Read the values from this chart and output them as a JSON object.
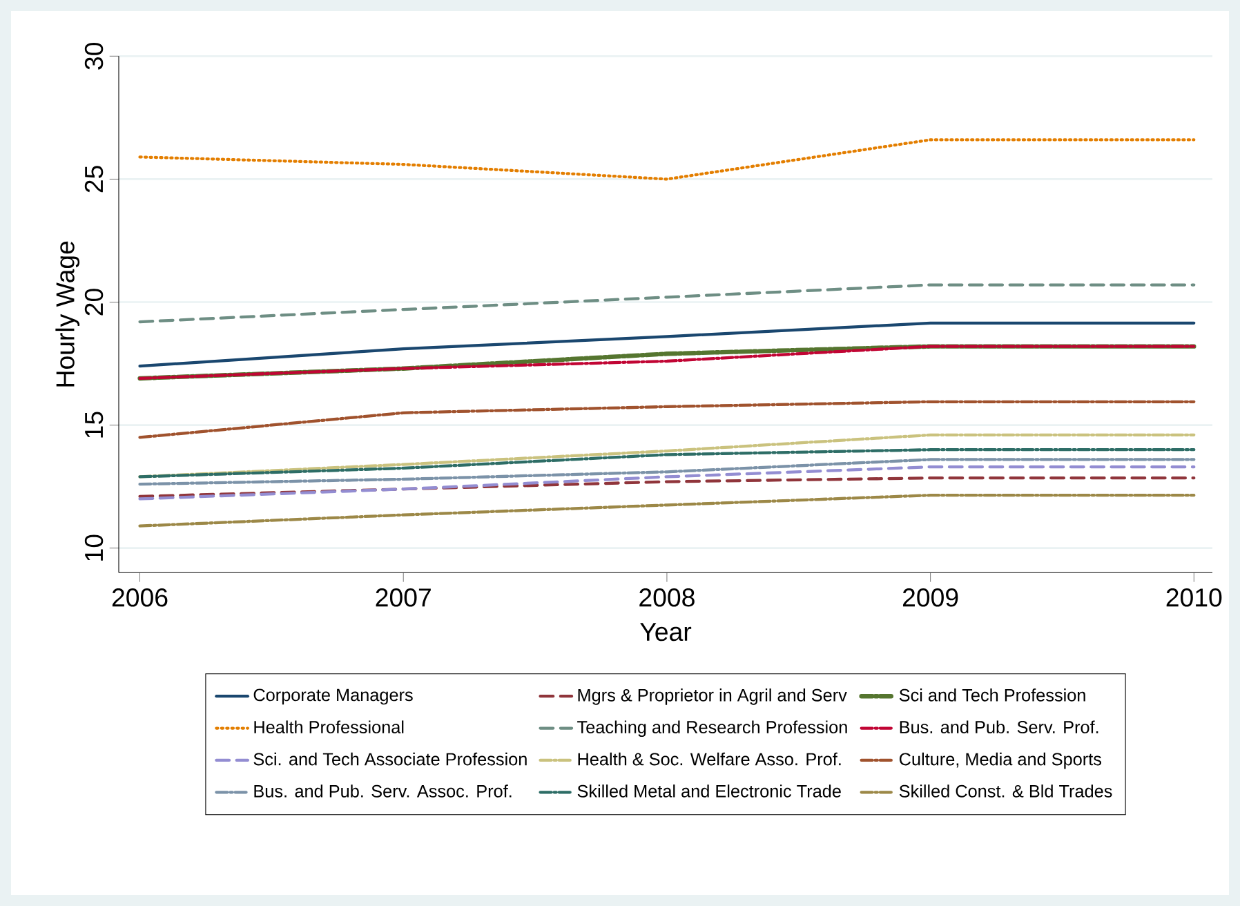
{
  "chart_data": {
    "type": "line",
    "xlabel": "Year",
    "ylabel": "Hourly Wage",
    "x": [
      2006,
      2007,
      2008,
      2009,
      2010
    ],
    "xlim": [
      2005.92,
      2010.07
    ],
    "xticks": [
      2006,
      2007,
      2008,
      2009,
      2010
    ],
    "ylim": [
      9,
      30
    ],
    "yticks": [
      10,
      15,
      20,
      25,
      30
    ],
    "grid": "y",
    "legend": "bottom",
    "marker": "none",
    "series": [
      {
        "name": "Corporate Managers",
        "color": "#1a476f",
        "line_style": "solid",
        "values": [
          17.4,
          18.1,
          18.6,
          19.15,
          19.15
        ]
      },
      {
        "name": "Mgrs & Proprietor in Agril and Serv",
        "color": "#90353b",
        "line_style": "dashed",
        "values": [
          12.1,
          12.4,
          12.7,
          12.85,
          12.85
        ]
      },
      {
        "name": "Sci and Tech Profession",
        "color": "#55752f",
        "line_style": "dashdot",
        "values": [
          16.9,
          17.3,
          17.9,
          18.2,
          18.2
        ]
      },
      {
        "name": "Health Professional",
        "color": "#e37e00",
        "line_style": "dotted",
        "values": [
          25.9,
          25.6,
          25.0,
          26.6,
          26.6
        ]
      },
      {
        "name": "Teaching and Research Profession",
        "color": "#6e8e84",
        "line_style": "dashed",
        "values": [
          19.2,
          19.7,
          20.2,
          20.7,
          20.7
        ]
      },
      {
        "name": "Bus. and Pub. Serv. Prof.",
        "color": "#c10534",
        "line_style": "dashdot",
        "values": [
          16.9,
          17.3,
          17.6,
          18.2,
          18.2
        ]
      },
      {
        "name": "Sci. and Tech Associate Profession",
        "color": "#938dd2",
        "line_style": "dashed",
        "values": [
          12.0,
          12.4,
          12.9,
          13.3,
          13.3
        ]
      },
      {
        "name": "Health & Soc. Welfare Asso. Prof.",
        "color": "#cac27e",
        "line_style": "dashdot",
        "values": [
          12.9,
          13.4,
          13.95,
          14.6,
          14.6
        ]
      },
      {
        "name": "Culture, Media and Sports",
        "color": "#a0522d",
        "line_style": "dashdot",
        "values": [
          14.5,
          15.5,
          15.75,
          15.95,
          15.95
        ]
      },
      {
        "name": "Bus. and Pub. Serv. Assoc. Prof.",
        "color": "#7b92a8",
        "line_style": "dashdot",
        "values": [
          12.6,
          12.8,
          13.1,
          13.6,
          13.6
        ]
      },
      {
        "name": "Skilled Metal and Electronic Trade",
        "color": "#2d6d66",
        "line_style": "dashdot",
        "values": [
          12.9,
          13.25,
          13.8,
          14.0,
          14.0
        ]
      },
      {
        "name": "Skilled Const. & Bld Trades",
        "color": "#9c8847",
        "line_style": "dashdot",
        "values": [
          10.9,
          11.35,
          11.75,
          12.15,
          12.15
        ]
      }
    ]
  }
}
